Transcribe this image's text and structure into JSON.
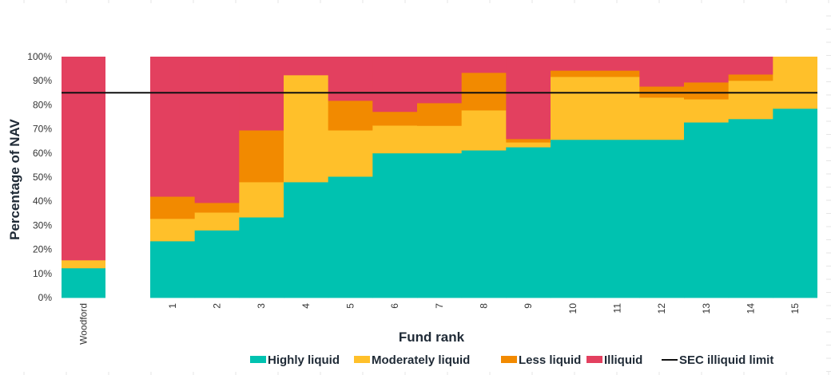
{
  "chart_data": {
    "type": "bar",
    "stacked": true,
    "title": "",
    "xlabel": "Fund rank",
    "ylabel": "Percentage of NAV",
    "ylim": [
      0,
      100
    ],
    "yticks": [
      "0%",
      "10%",
      "20%",
      "30%",
      "40%",
      "50%",
      "60%",
      "70%",
      "80%",
      "90%",
      "100%"
    ],
    "categories": [
      "Woodford",
      "1",
      "2",
      "3",
      "4",
      "5",
      "6",
      "7",
      "8",
      "9",
      "10",
      "11",
      "12",
      "13",
      "14",
      "15"
    ],
    "series": [
      {
        "name": "Highly liquid",
        "color": "#00C2B0",
        "values": [
          12.3,
          23.5,
          28.0,
          33.4,
          48.0,
          50.3,
          60.0,
          60.0,
          61.2,
          62.5,
          65.6,
          65.6,
          65.6,
          72.8,
          74.2,
          78.5
        ]
      },
      {
        "name": "Moderately liquid",
        "color": "#FFC02A",
        "values": [
          3.3,
          9.3,
          7.4,
          14.6,
          44.4,
          19.2,
          11.5,
          11.4,
          16.6,
          2.0,
          26.1,
          26.1,
          17.5,
          9.6,
          15.9,
          21.5
        ]
      },
      {
        "name": "Less liquid",
        "color": "#F28A00",
        "values": [
          0.0,
          9.2,
          4.0,
          21.5,
          0.0,
          12.3,
          5.7,
          9.4,
          15.6,
          1.4,
          2.6,
          2.6,
          4.6,
          7.0,
          2.6,
          0.0
        ]
      },
      {
        "name": "Illiquid",
        "color": "#E3405F",
        "values": [
          84.4,
          58.0,
          60.6,
          30.5,
          7.6,
          18.2,
          22.8,
          19.2,
          6.6,
          34.1,
          5.7,
          5.7,
          12.3,
          10.6,
          7.3,
          0.0
        ]
      }
    ],
    "reference_line": {
      "name": "SEC illiquid limit",
      "value": 85,
      "color": "#111111"
    },
    "legend": {
      "placement": "bottom",
      "items": [
        "Highly liquid",
        "Moderately liquid",
        "Less liquid",
        "Illiquid",
        "SEC illiquid limit"
      ]
    },
    "grid": false
  }
}
